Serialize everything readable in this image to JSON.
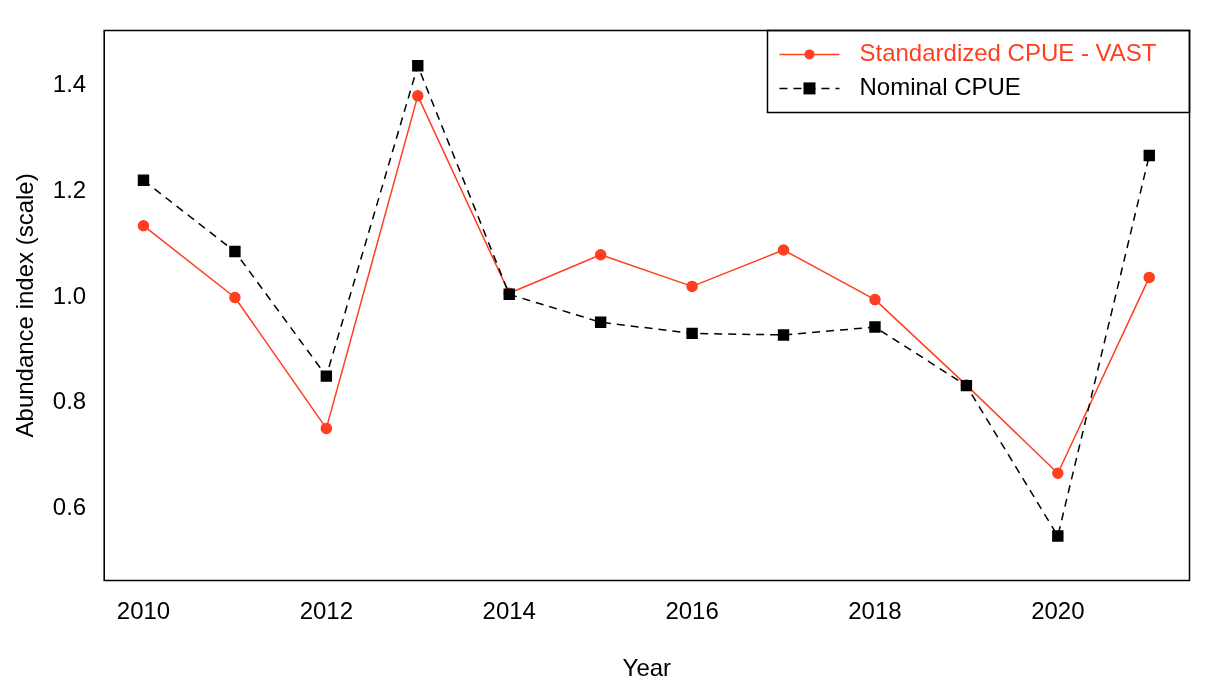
{
  "chart_data": {
    "type": "line",
    "xlabel": "Year",
    "ylabel": "Abundance index (scale)",
    "x": [
      2010,
      2011,
      2012,
      2013,
      2014,
      2015,
      2016,
      2017,
      2018,
      2019,
      2020,
      2021
    ],
    "series": [
      {
        "name": "Standardized CPUE - VAST",
        "color": "#ff3f1f",
        "marker": "circle",
        "line_style": "solid",
        "values": [
          1.135,
          0.999,
          0.751,
          1.381,
          1.007,
          1.08,
          1.02,
          1.089,
          0.995,
          0.833,
          0.666,
          1.037
        ]
      },
      {
        "name": "Nominal CPUE",
        "color": "#000000",
        "marker": "square",
        "line_style": "dashed",
        "values": [
          1.221,
          1.086,
          0.85,
          1.438,
          1.005,
          0.952,
          0.931,
          0.928,
          0.943,
          0.832,
          0.547,
          1.268
        ]
      }
    ],
    "xlim": [
      2009.57,
      2021.44
    ],
    "xticks": [
      2010,
      2012,
      2014,
      2016,
      2018,
      2020
    ],
    "ylim": [
      0.463,
      1.505
    ],
    "yticks": [
      {
        "value": 0.6,
        "label": "0.6"
      },
      {
        "value": 0.8,
        "label": "0.8"
      },
      {
        "value": 1.0,
        "label": "1.0"
      },
      {
        "value": 1.2,
        "label": "1.2"
      },
      {
        "value": 1.4,
        "label": "1.4"
      }
    ],
    "grid": false,
    "legend": "top right"
  }
}
